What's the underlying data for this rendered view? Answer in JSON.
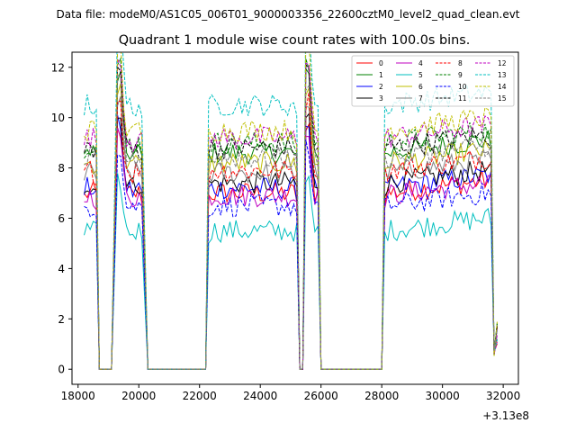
{
  "figure": {
    "suptitle": "Data file: modeM0/AS1C05_006T01_9000003356_22600cztM0_level2_quad_clean.evt",
    "title": "Quadrant 1 module wise count rates with 100.0s bins.",
    "x_offset_label": "+3.13e8"
  },
  "chart_data": {
    "type": "line",
    "title": "Quadrant 1 module wise count rates with 100.0s bins.",
    "xlabel": "",
    "ylabel": "",
    "x_offset": 313000000,
    "xlim": [
      17800,
      32500
    ],
    "ylim": [
      -0.6,
      12.6
    ],
    "xticks": [
      18000,
      20000,
      22000,
      24000,
      26000,
      28000,
      30000,
      32000
    ],
    "yticks": [
      0,
      2,
      4,
      6,
      8,
      10,
      12
    ],
    "legend_position": "top-right",
    "series": [
      {
        "name": "0",
        "color": "#ff0000",
        "dash": "solid",
        "level": 7.0
      },
      {
        "name": "1",
        "color": "#008000",
        "dash": "solid",
        "level": 8.6
      },
      {
        "name": "2",
        "color": "#0000ff",
        "dash": "solid",
        "level": 7.2
      },
      {
        "name": "3",
        "color": "#000000",
        "dash": "solid",
        "level": 7.4
      },
      {
        "name": "4",
        "color": "#bf00bf",
        "dash": "solid",
        "level": 6.9
      },
      {
        "name": "5",
        "color": "#00bfbf",
        "dash": "solid",
        "level": 5.5
      },
      {
        "name": "6",
        "color": "#bfbf00",
        "dash": "solid",
        "level": 8.2
      },
      {
        "name": "7",
        "color": "#808080",
        "dash": "solid",
        "level": 7.8
      },
      {
        "name": "8",
        "color": "#ff0000",
        "dash": "dashed",
        "level": 7.9
      },
      {
        "name": "9",
        "color": "#008000",
        "dash": "dashed",
        "level": 9.0
      },
      {
        "name": "10",
        "color": "#0000ff",
        "dash": "dashed",
        "level": 6.5
      },
      {
        "name": "11",
        "color": "#000000",
        "dash": "dashed",
        "level": 8.8
      },
      {
        "name": "12",
        "color": "#bf00bf",
        "dash": "dashed",
        "level": 9.2
      },
      {
        "name": "13",
        "color": "#00bfbf",
        "dash": "dashed",
        "level": 10.5
      },
      {
        "name": "14",
        "color": "#bfbf00",
        "dash": "dashed",
        "level": 9.5
      },
      {
        "name": "15",
        "color": "#808080",
        "dash": "dashed",
        "level": 8.4
      }
    ],
    "segments": [
      {
        "start": 18200,
        "end": 18600,
        "shape": "high"
      },
      {
        "start": 18700,
        "end": 19100,
        "shape": "zero"
      },
      {
        "start": 19300,
        "end": 19700,
        "shape": "peak"
      },
      {
        "start": 19800,
        "end": 20100,
        "shape": "high"
      },
      {
        "start": 20300,
        "end": 22200,
        "shape": "zero"
      },
      {
        "start": 22300,
        "end": 25200,
        "shape": "high"
      },
      {
        "start": 25300,
        "end": 25400,
        "shape": "zero"
      },
      {
        "start": 25500,
        "end": 25900,
        "shape": "peak"
      },
      {
        "start": 26000,
        "end": 28000,
        "shape": "zero"
      },
      {
        "start": 28100,
        "end": 31600,
        "shape": "high"
      },
      {
        "start": 31700,
        "end": 31800,
        "shape": "tail"
      }
    ]
  }
}
